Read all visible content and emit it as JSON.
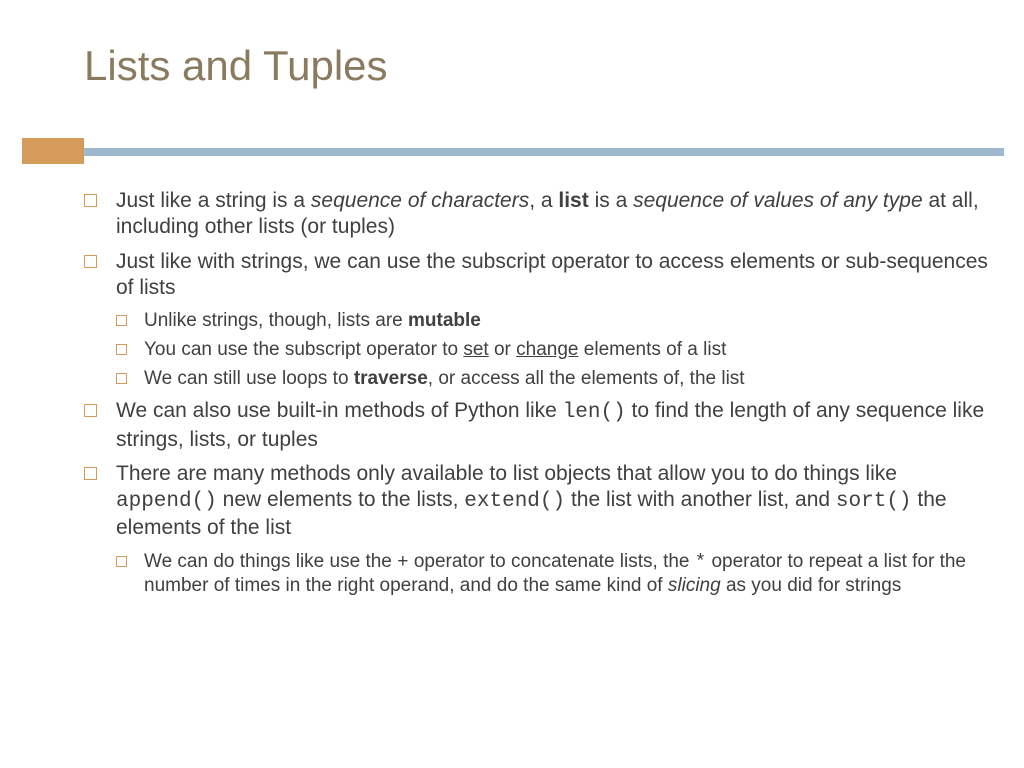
{
  "colors": {
    "title": "#8a7a5f",
    "text": "#404040",
    "accent_orange": "#d59b5b",
    "accent_blue": "#9db8cf",
    "background": "#ffffff"
  },
  "typography": {
    "title_fontsize": 42,
    "body_fontsize_l1": 21,
    "body_fontsize_l2": 19,
    "title_font": "Trebuchet MS / Century Gothic",
    "body_font": "Trebuchet MS / Verdana",
    "code_font": "Courier New"
  },
  "title": "Lists and Tuples",
  "bullets": {
    "b1": {
      "t1": "Just like a string is a ",
      "t2": "sequence of characters",
      "t3": ", a ",
      "t4": "list",
      "t5": " is a ",
      "t6": "sequence of values of any type",
      "t7": " at all, including other lists (or tuples)"
    },
    "b2": {
      "t1": "Just like with strings, we can use the subscript operator to access elements or sub-sequences of lists"
    },
    "b2s1": {
      "t1": "Unlike strings, though, lists are ",
      "t2": "mutable"
    },
    "b2s2": {
      "t1": "You can use the subscript operator to ",
      "t2": "set",
      "t3": " or ",
      "t4": "change",
      "t5": " elements of a list"
    },
    "b2s3": {
      "t1": "We can still use loops to ",
      "t2": "traverse",
      "t3": ", or access all the elements of, the list"
    },
    "b3": {
      "t1": "We can also use built-in methods of Python like ",
      "t2": "len()",
      "t3": " to find the length of any sequence like strings, lists, or tuples"
    },
    "b4": {
      "t1": "There are many methods only available to list objects that allow you to do things like ",
      "t2": "append()",
      "t3": " new elements to the lists, ",
      "t4": "extend()",
      "t5": " the list with another list, and ",
      "t6": "sort()",
      "t7": " the elements of the list"
    },
    "b4s1": {
      "t1": "We can do things like use the ",
      "t2": "+",
      "t3": " operator to concatenate lists, the ",
      "t4": "*",
      "t5": " operator to repeat a list for the number of times in the right operand, and do the same kind of ",
      "t6": "slicing",
      "t7": " as you did for strings"
    }
  }
}
